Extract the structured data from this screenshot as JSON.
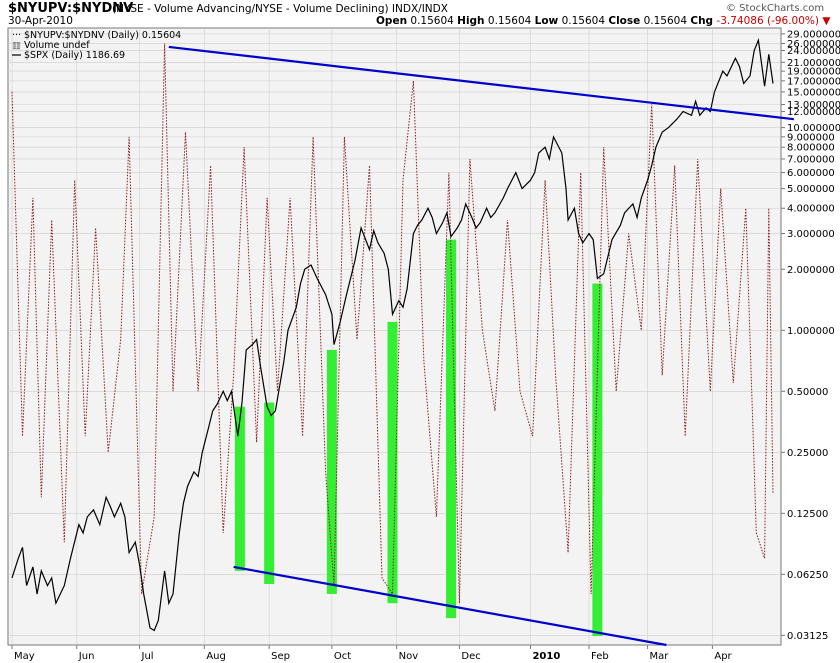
{
  "header": {
    "symbol": "$NYUPV:$NYDNV",
    "description": "(NYSE - Volume Advancing/NYSE - Volume Declining)  INDX/INDX",
    "date": "30-Apr-2010",
    "ohlc": {
      "open_label": "Open",
      "open": "0.15604",
      "high_label": "High",
      "high": "0.15604",
      "low_label": "Low",
      "low": "0.15604",
      "close_label": "Close",
      "close": "0.15604",
      "chg_label": "Chg",
      "chg": "-3.74086 (-96.00%)"
    },
    "watermark": "© StockCharts.com",
    "chg_color": "#cc0000"
  },
  "legend": {
    "ratio": "$NYUPV:$NYDNV (Daily) 0.15604",
    "volume": "Volume undef",
    "spx": "$SPX (Daily) 1186.69"
  },
  "chart_data": {
    "type": "line",
    "y_scale": "log",
    "ylim": [
      0.028,
      31
    ],
    "y_ticks": [
      "29.000000",
      "26.000000",
      "24.000000",
      "21.000000",
      "19.000000",
      "17.000000",
      "15.000000",
      "13.000000",
      "12.000000",
      "10.000000",
      "9.000000",
      "8.000000",
      "7.000000",
      "6.000000",
      "5.000000",
      "4.000000",
      "3.000000",
      "2.000000",
      "1.000000",
      "0.50000",
      "0.25000",
      "0.12500",
      "0.06250",
      "0.03125"
    ],
    "x_ticks": [
      "May",
      "Jun",
      "Jul",
      "Aug",
      "Sep",
      "Oct",
      "Nov",
      "Dec",
      "2010",
      "Feb",
      "Mar",
      "Apr"
    ],
    "x_tick_dates": [
      "2009-05-01",
      "2009-06-01",
      "2009-07-01",
      "2009-08-01",
      "2009-09-01",
      "2009-10-01",
      "2009-11-01",
      "2009-12-01",
      "2010-01-04",
      "2010-02-01",
      "2010-03-01",
      "2010-04-01"
    ],
    "x_range": [
      "2009-05-01",
      "2010-04-30"
    ],
    "grid": true,
    "series": [
      {
        "name": "$NYUPV:$NYDNV",
        "style": "dotted",
        "color": "#8b1a1a",
        "values": [
          [
            "2009-05-01",
            15
          ],
          [
            "2009-05-06",
            0.3
          ],
          [
            "2009-05-11",
            4.5
          ],
          [
            "2009-05-15",
            0.15
          ],
          [
            "2009-05-20",
            3.5
          ],
          [
            "2009-05-26",
            0.09
          ],
          [
            "2009-05-31",
            5.5
          ],
          [
            "2009-06-05",
            0.3
          ],
          [
            "2009-06-10",
            3.2
          ],
          [
            "2009-06-16",
            0.25
          ],
          [
            "2009-06-22",
            0.9
          ],
          [
            "2009-06-26",
            9
          ],
          [
            "2009-07-02",
            0.05
          ],
          [
            "2009-07-08",
            0.12
          ],
          [
            "2009-07-13",
            26
          ],
          [
            "2009-07-17",
            0.5
          ],
          [
            "2009-07-23",
            9.5
          ],
          [
            "2009-07-29",
            0.5
          ],
          [
            "2009-08-04",
            6.5
          ],
          [
            "2009-08-10",
            0.1
          ],
          [
            "2009-08-15",
            0.6
          ],
          [
            "2009-08-20",
            8
          ],
          [
            "2009-08-26",
            0.28
          ],
          [
            "2009-08-31",
            4.5
          ],
          [
            "2009-09-05",
            0.5
          ],
          [
            "2009-09-11",
            4.5
          ],
          [
            "2009-09-17",
            0.3
          ],
          [
            "2009-09-22",
            9
          ],
          [
            "2009-09-28",
            0.2
          ],
          [
            "2009-10-02",
            0.055
          ],
          [
            "2009-10-07",
            9
          ],
          [
            "2009-10-13",
            0.9
          ],
          [
            "2009-10-19",
            6.5
          ],
          [
            "2009-10-25",
            0.06
          ],
          [
            "2009-10-30",
            0.05
          ],
          [
            "2009-11-04",
            5.5
          ],
          [
            "2009-11-09",
            17
          ],
          [
            "2009-11-14",
            0.7
          ],
          [
            "2009-11-20",
            0.12
          ],
          [
            "2009-11-26",
            6
          ],
          [
            "2009-12-01",
            0.045
          ],
          [
            "2009-12-06",
            7
          ],
          [
            "2009-12-12",
            1
          ],
          [
            "2009-12-18",
            0.4
          ],
          [
            "2009-12-24",
            3.5
          ],
          [
            "2009-12-30",
            0.5
          ],
          [
            "2010-01-05",
            0.3
          ],
          [
            "2010-01-11",
            5.5
          ],
          [
            "2010-01-16",
            0.6
          ],
          [
            "2010-01-22",
            0.08
          ],
          [
            "2010-01-28",
            6
          ],
          [
            "2010-02-02",
            0.05
          ],
          [
            "2010-02-08",
            8
          ],
          [
            "2010-02-14",
            0.5
          ],
          [
            "2010-02-20",
            3
          ],
          [
            "2010-02-26",
            1
          ],
          [
            "2010-03-03",
            13
          ],
          [
            "2010-03-08",
            0.6
          ],
          [
            "2010-03-14",
            6.5
          ],
          [
            "2010-03-19",
            0.3
          ],
          [
            "2010-03-25",
            7
          ],
          [
            "2010-03-31",
            0.5
          ],
          [
            "2010-04-05",
            5
          ],
          [
            "2010-04-11",
            0.55
          ],
          [
            "2010-04-17",
            4
          ],
          [
            "2010-04-22",
            0.1
          ],
          [
            "2010-04-26",
            0.075
          ],
          [
            "2010-04-28",
            4
          ],
          [
            "2010-04-30",
            0.15604
          ]
        ]
      },
      {
        "name": "$SPX",
        "style": "solid",
        "color": "#000000",
        "values": [
          [
            "2009-05-01",
            0.06
          ],
          [
            "2009-05-04",
            0.075
          ],
          [
            "2009-05-06",
            0.085
          ],
          [
            "2009-05-08",
            0.055
          ],
          [
            "2009-05-11",
            0.068
          ],
          [
            "2009-05-13",
            0.05
          ],
          [
            "2009-05-15",
            0.065
          ],
          [
            "2009-05-18",
            0.055
          ],
          [
            "2009-05-20",
            0.06
          ],
          [
            "2009-05-22",
            0.045
          ],
          [
            "2009-05-26",
            0.055
          ],
          [
            "2009-05-29",
            0.075
          ],
          [
            "2009-06-02",
            0.11
          ],
          [
            "2009-06-04",
            0.1
          ],
          [
            "2009-06-06",
            0.12
          ],
          [
            "2009-06-09",
            0.13
          ],
          [
            "2009-06-12",
            0.11
          ],
          [
            "2009-06-15",
            0.15
          ],
          [
            "2009-06-17",
            0.135
          ],
          [
            "2009-06-19",
            0.12
          ],
          [
            "2009-06-22",
            0.14
          ],
          [
            "2009-06-24",
            0.12
          ],
          [
            "2009-06-26",
            0.08
          ],
          [
            "2009-06-29",
            0.09
          ],
          [
            "2009-07-01",
            0.07
          ],
          [
            "2009-07-03",
            0.05
          ],
          [
            "2009-07-06",
            0.034
          ],
          [
            "2009-07-08",
            0.033
          ],
          [
            "2009-07-10",
            0.037
          ],
          [
            "2009-07-13",
            0.065
          ],
          [
            "2009-07-15",
            0.045
          ],
          [
            "2009-07-17",
            0.05
          ],
          [
            "2009-07-20",
            0.1
          ],
          [
            "2009-07-22",
            0.14
          ],
          [
            "2009-07-24",
            0.17
          ],
          [
            "2009-07-27",
            0.2
          ],
          [
            "2009-07-29",
            0.19
          ],
          [
            "2009-07-31",
            0.25
          ],
          [
            "2009-08-03",
            0.33
          ],
          [
            "2009-08-05",
            0.4
          ],
          [
            "2009-08-07",
            0.43
          ],
          [
            "2009-08-10",
            0.5
          ],
          [
            "2009-08-12",
            0.45
          ],
          [
            "2009-08-14",
            0.5
          ],
          [
            "2009-08-17",
            0.3
          ],
          [
            "2009-08-19",
            0.44
          ],
          [
            "2009-08-21",
            0.8
          ],
          [
            "2009-08-24",
            0.85
          ],
          [
            "2009-08-26",
            0.9
          ],
          [
            "2009-08-28",
            0.65
          ],
          [
            "2009-08-31",
            0.42
          ],
          [
            "2009-09-02",
            0.38
          ],
          [
            "2009-09-04",
            0.4
          ],
          [
            "2009-09-08",
            0.7
          ],
          [
            "2009-09-10",
            1.0
          ],
          [
            "2009-09-14",
            1.3
          ],
          [
            "2009-09-16",
            1.7
          ],
          [
            "2009-09-18",
            2.0
          ],
          [
            "2009-09-21",
            2.1
          ],
          [
            "2009-09-24",
            1.8
          ],
          [
            "2009-09-28",
            1.5
          ],
          [
            "2009-10-01",
            1.2
          ],
          [
            "2009-10-02",
            0.85
          ],
          [
            "2009-10-05",
            1.1
          ],
          [
            "2009-10-08",
            1.5
          ],
          [
            "2009-10-12",
            2.2
          ],
          [
            "2009-10-15",
            3.2
          ],
          [
            "2009-10-19",
            2.5
          ],
          [
            "2009-10-21",
            3.1
          ],
          [
            "2009-10-23",
            2.7
          ],
          [
            "2009-10-26",
            2.4
          ],
          [
            "2009-10-28",
            2.0
          ],
          [
            "2009-10-30",
            1.2
          ],
          [
            "2009-11-02",
            1.4
          ],
          [
            "2009-11-04",
            1.3
          ],
          [
            "2009-11-06",
            1.6
          ],
          [
            "2009-11-09",
            3.0
          ],
          [
            "2009-11-11",
            3.3
          ],
          [
            "2009-11-13",
            3.5
          ],
          [
            "2009-11-16",
            4.0
          ],
          [
            "2009-11-18",
            3.6
          ],
          [
            "2009-11-20",
            3.0
          ],
          [
            "2009-11-23",
            3.4
          ],
          [
            "2009-11-25",
            3.8
          ],
          [
            "2009-11-27",
            2.9
          ],
          [
            "2009-11-30",
            3.2
          ],
          [
            "2009-12-02",
            3.5
          ],
          [
            "2009-12-04",
            4.2
          ],
          [
            "2009-12-07",
            3.6
          ],
          [
            "2009-12-09",
            3.2
          ],
          [
            "2009-12-11",
            3.4
          ],
          [
            "2009-12-14",
            4.0
          ],
          [
            "2009-12-16",
            3.6
          ],
          [
            "2009-12-18",
            3.8
          ],
          [
            "2009-12-22",
            4.5
          ],
          [
            "2009-12-24",
            5.0
          ],
          [
            "2009-12-28",
            6.0
          ],
          [
            "2009-12-31",
            5.0
          ],
          [
            "2010-01-04",
            5.5
          ],
          [
            "2010-01-06",
            6.0
          ],
          [
            "2010-01-08",
            7.5
          ],
          [
            "2010-01-11",
            8.0
          ],
          [
            "2010-01-13",
            7.0
          ],
          [
            "2010-01-15",
            9.0
          ],
          [
            "2010-01-19",
            7.5
          ],
          [
            "2010-01-21",
            5.0
          ],
          [
            "2010-01-22",
            3.5
          ],
          [
            "2010-01-25",
            4.0
          ],
          [
            "2010-01-27",
            3.0
          ],
          [
            "2010-01-29",
            2.7
          ],
          [
            "2010-02-01",
            3.0
          ],
          [
            "2010-02-03",
            2.8
          ],
          [
            "2010-02-05",
            1.8
          ],
          [
            "2010-02-08",
            1.9
          ],
          [
            "2010-02-10",
            2.3
          ],
          [
            "2010-02-12",
            2.8
          ],
          [
            "2010-02-16",
            3.3
          ],
          [
            "2010-02-18",
            3.8
          ],
          [
            "2010-02-22",
            4.2
          ],
          [
            "2010-02-24",
            3.6
          ],
          [
            "2010-02-26",
            4.5
          ],
          [
            "2010-03-01",
            5.5
          ],
          [
            "2010-03-03",
            6.5
          ],
          [
            "2010-03-05",
            8.0
          ],
          [
            "2010-03-08",
            9.5
          ],
          [
            "2010-03-11",
            10.0
          ],
          [
            "2010-03-15",
            11.0
          ],
          [
            "2010-03-18",
            12.0
          ],
          [
            "2010-03-22",
            11.5
          ],
          [
            "2010-03-24",
            13.5
          ],
          [
            "2010-03-26",
            11.5
          ],
          [
            "2010-03-29",
            12.5
          ],
          [
            "2010-03-31",
            12.0
          ],
          [
            "2010-04-02",
            15.0
          ],
          [
            "2010-04-06",
            19.0
          ],
          [
            "2010-04-08",
            18.0
          ],
          [
            "2010-04-12",
            22.0
          ],
          [
            "2010-04-14",
            20.0
          ],
          [
            "2010-04-16",
            16.5
          ],
          [
            "2010-04-19",
            18.0
          ],
          [
            "2010-04-21",
            24.0
          ],
          [
            "2010-04-23",
            27.0
          ],
          [
            "2010-04-26",
            16.0
          ],
          [
            "2010-04-28",
            23.0
          ],
          [
            "2010-04-30",
            16.5
          ]
        ]
      }
    ],
    "highlights": [
      {
        "date": "2009-08-18",
        "top": 0.42,
        "bottom": 0.065
      },
      {
        "date": "2009-09-01",
        "top": 0.44,
        "bottom": 0.056
      },
      {
        "date": "2009-10-01",
        "top": 0.8,
        "bottom": 0.05
      },
      {
        "date": "2009-10-30",
        "top": 1.1,
        "bottom": 0.045
      },
      {
        "date": "2009-11-27",
        "top": 2.8,
        "bottom": 0.038
      },
      {
        "date": "2010-02-05",
        "top": 1.7,
        "bottom": 0.031
      }
    ],
    "trendlines": [
      {
        "color": "#0000cc",
        "points": [
          [
            "2009-07-15",
            25
          ],
          [
            "2010-05-10",
            11
          ]
        ]
      },
      {
        "color": "#0000cc",
        "points": [
          [
            "2009-08-15",
            0.068
          ],
          [
            "2010-03-10",
            0.028
          ]
        ]
      }
    ],
    "highlight_color": "#33ee33"
  }
}
